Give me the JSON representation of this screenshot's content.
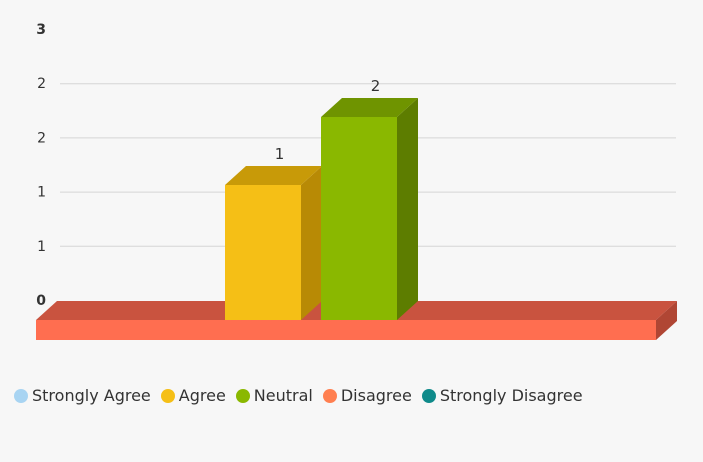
{
  "chart_data": {
    "type": "bar",
    "categories": [
      "Agree",
      "Neutral"
    ],
    "values": [
      1.33,
      2
    ],
    "data_labels": [
      "1",
      "2"
    ],
    "y_tick_labels": [
      "3",
      "2",
      "2",
      "1",
      "1",
      "0"
    ],
    "ylim": [
      0,
      2.67
    ],
    "grid": true,
    "legend_position": "bottom",
    "legend": [
      {
        "label": "Strongly Agree",
        "color": "#a8d4f2"
      },
      {
        "label": "Agree",
        "color": "#f5bf16"
      },
      {
        "label": "Neutral",
        "color": "#8ab800"
      },
      {
        "label": "Disagree",
        "color": "#ff7f50"
      },
      {
        "label": "Strongly Disagree",
        "color": "#0f8a8a"
      }
    ],
    "bar_colors": {
      "Agree": {
        "front": "#f5bf16",
        "top": "#c89a08",
        "side": "#b88a05"
      },
      "Neutral": {
        "front": "#8ab800",
        "top": "#6f9400",
        "side": "#5d7d00"
      }
    },
    "base_colors": {
      "front": "#ff6e50",
      "top": "#c9533f",
      "side": "#b04634"
    }
  }
}
